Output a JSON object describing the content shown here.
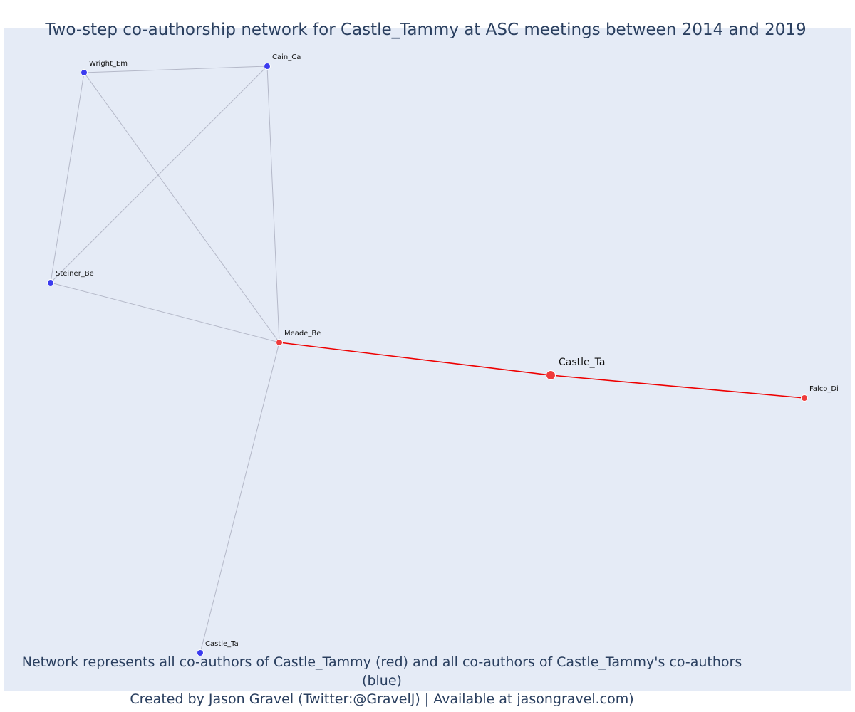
{
  "title": "Two-step co-authorship network for Castle_Tammy at ASC meetings between 2014 and 2019",
  "caption": {
    "line1": "Network represents all co-authors of Castle_Tammy (red) and all co-authors of Castle_Tammy's co-authors (blue)",
    "line2": "Created by Jason Gravel (Twitter:@GravelJ) | Available at jasongravel.com)"
  },
  "colors": {
    "background": "#e5ebf6",
    "red_node": "#ef3b3b",
    "blue_node": "#3b3bef",
    "red_edge": "#ee0000",
    "grey_edge": "#b4b8c8",
    "text": "#2a3f5f"
  },
  "nodes": [
    {
      "id": "focal",
      "label": "Castle_Ta",
      "group": "red",
      "focal": true
    },
    {
      "id": "meade",
      "label": "Meade_Be",
      "group": "red"
    },
    {
      "id": "falco",
      "label": "Falco_Di",
      "group": "red"
    },
    {
      "id": "wright",
      "label": "Wright_Em",
      "group": "blue"
    },
    {
      "id": "cain",
      "label": "Cain_Ca",
      "group": "blue"
    },
    {
      "id": "steiner",
      "label": "Steiner_Be",
      "group": "blue"
    },
    {
      "id": "castle2",
      "label": "Castle_Ta",
      "group": "blue"
    }
  ],
  "edges": [
    {
      "from": "meade",
      "to": "focal",
      "type": "red"
    },
    {
      "from": "focal",
      "to": "falco",
      "type": "red"
    },
    {
      "from": "wright",
      "to": "cain",
      "type": "grey"
    },
    {
      "from": "wright",
      "to": "steiner",
      "type": "grey"
    },
    {
      "from": "wright",
      "to": "meade",
      "type": "grey"
    },
    {
      "from": "cain",
      "to": "steiner",
      "type": "grey"
    },
    {
      "from": "cain",
      "to": "meade",
      "type": "grey"
    },
    {
      "from": "steiner",
      "to": "meade",
      "type": "grey"
    },
    {
      "from": "meade",
      "to": "castle2",
      "type": "grey"
    }
  ]
}
